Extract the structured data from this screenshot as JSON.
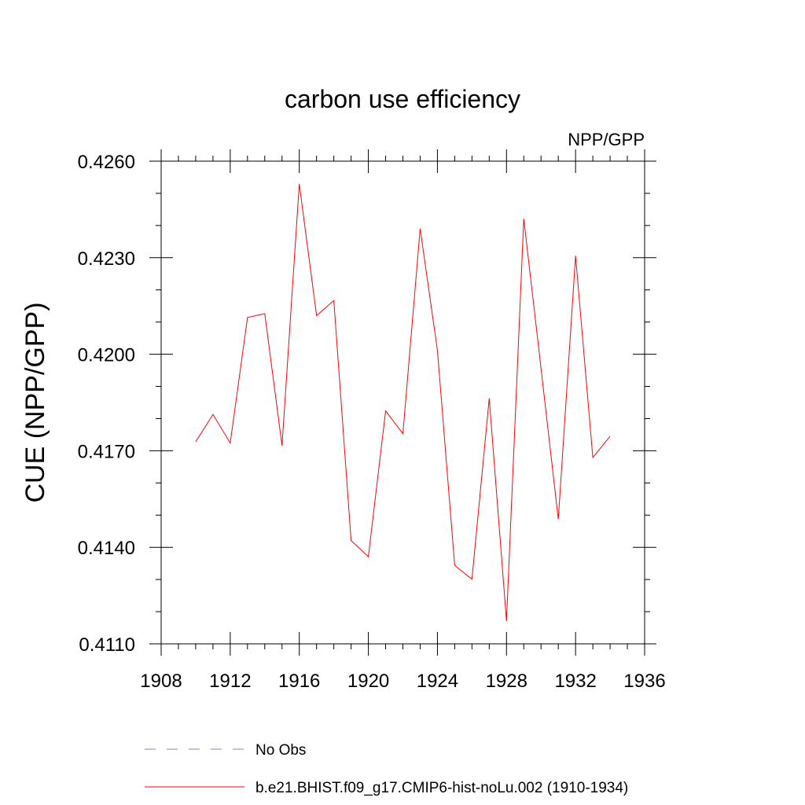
{
  "chart_data": {
    "type": "line",
    "title": "carbon use efficiency",
    "subtitle": "NPP/GPP",
    "xlabel": "",
    "ylabel": "CUE  (NPP/GPP)",
    "xlim": [
      1908,
      1936
    ],
    "ylim": [
      0.411,
      0.426
    ],
    "x_ticks": [
      1908,
      1912,
      1916,
      1920,
      1924,
      1928,
      1932,
      1936
    ],
    "x_tick_labels": [
      "1908",
      "1912",
      "1916",
      "1920",
      "1924",
      "1928",
      "1932",
      "1936"
    ],
    "x_minor_step": 1,
    "y_ticks": [
      0.411,
      0.414,
      0.417,
      0.42,
      0.423,
      0.426
    ],
    "y_tick_labels": [
      "0.4110",
      "0.4140",
      "0.4170",
      "0.4200",
      "0.4230",
      "0.4260"
    ],
    "y_minor_step": 0.001,
    "grid": false,
    "legend_position": "bottom-left",
    "series": [
      {
        "name": "b.e21.BHIST.f09_g17.CMIP6-hist-noLu.002 (1910-1934)",
        "color": "#ff0000",
        "dash": "solid",
        "x": [
          1910,
          1911,
          1912,
          1913,
          1914,
          1915,
          1916,
          1917,
          1918,
          1919,
          1920,
          1921,
          1922,
          1923,
          1924,
          1925,
          1926,
          1927,
          1928,
          1929,
          1930,
          1931,
          1932,
          1933,
          1934
        ],
        "y": [
          0.41728,
          0.41813,
          0.41724,
          0.42114,
          0.42126,
          0.41716,
          0.42529,
          0.4212,
          0.42167,
          0.41421,
          0.41371,
          0.41824,
          0.41753,
          0.4239,
          0.42012,
          0.41344,
          0.41301,
          0.41863,
          0.41171,
          0.42421,
          0.41956,
          0.41487,
          0.42306,
          0.41679,
          0.41745
        ]
      }
    ],
    "legend": [
      {
        "label": "No Obs",
        "color": "#8080c0",
        "dash": "dashed"
      },
      {
        "label": "b.e21.BHIST.f09_g17.CMIP6-hist-noLu.002 (1910-1934)",
        "color": "#ff0000",
        "dash": "solid"
      }
    ]
  }
}
